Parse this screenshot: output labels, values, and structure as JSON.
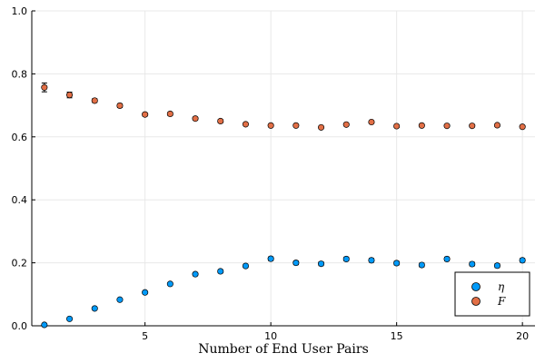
{
  "chart_data": {
    "type": "scatter",
    "title": "",
    "xlabel": "Number of End User Pairs",
    "ylabel": "",
    "xlim": [
      0.5,
      20.5
    ],
    "ylim": [
      0,
      1.0
    ],
    "xticks": [
      5,
      10,
      15,
      20
    ],
    "yticks": [
      0.0,
      0.2,
      0.4,
      0.6,
      0.8,
      1.0
    ],
    "xtick_labels": [
      "5",
      "10",
      "15",
      "20"
    ],
    "ytick_labels": [
      "0.0",
      "0.2",
      "0.4",
      "0.6",
      "0.8",
      "1.0"
    ],
    "grid": true,
    "legend_position": "bottom-right",
    "x": [
      1,
      2,
      3,
      4,
      5,
      6,
      7,
      8,
      9,
      10,
      11,
      12,
      13,
      14,
      15,
      16,
      17,
      18,
      19,
      20
    ],
    "series": [
      {
        "name": "η",
        "color": "#009af9",
        "values": [
          0.003,
          0.022,
          0.055,
          0.083,
          0.106,
          0.133,
          0.164,
          0.173,
          0.19,
          0.213,
          0.2,
          0.197,
          0.212,
          0.208,
          0.199,
          0.193,
          0.212,
          0.196,
          0.191,
          0.208
        ],
        "errors": [
          0.004,
          0.004,
          0.004,
          0.004,
          0.004,
          0.004,
          0.005,
          0.005,
          0.005,
          0.006,
          0.006,
          0.006,
          0.006,
          0.006,
          0.006,
          0.006,
          0.006,
          0.006,
          0.006,
          0.006
        ]
      },
      {
        "name": "F",
        "color": "#e26f46",
        "values": [
          0.757,
          0.733,
          0.715,
          0.699,
          0.671,
          0.673,
          0.658,
          0.65,
          0.64,
          0.636,
          0.636,
          0.63,
          0.639,
          0.647,
          0.634,
          0.636,
          0.635,
          0.635,
          0.637,
          0.632
        ],
        "errors": [
          0.014,
          0.009,
          0.006,
          0.006,
          0.005,
          0.005,
          0.005,
          0.005,
          0.004,
          0.004,
          0.004,
          0.004,
          0.004,
          0.004,
          0.004,
          0.004,
          0.004,
          0.004,
          0.004,
          0.004
        ]
      }
    ]
  }
}
